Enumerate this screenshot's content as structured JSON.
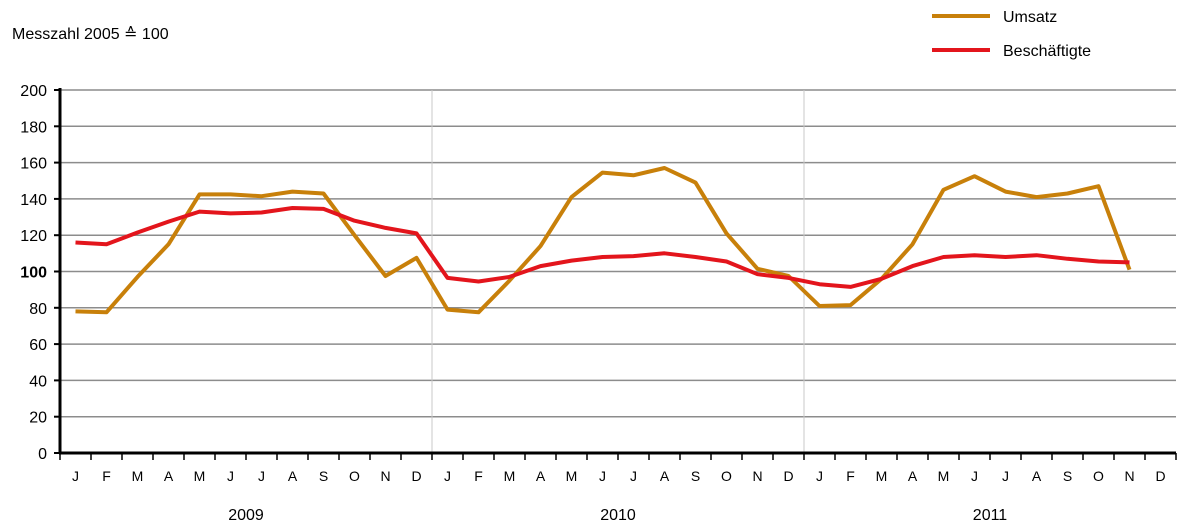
{
  "chart_data": {
    "type": "line",
    "unit_label": "Messzahl 2005 ≙ 100",
    "xlabel": "",
    "ylabel": "",
    "ylim": [
      0,
      200
    ],
    "y_ticks": [
      0,
      20,
      40,
      60,
      80,
      100,
      120,
      140,
      160,
      180,
      200
    ],
    "grid": true,
    "legend_position": "top-right",
    "month_labels": [
      "J",
      "F",
      "M",
      "A",
      "M",
      "J",
      "J",
      "A",
      "S",
      "O",
      "N",
      "D",
      "J",
      "F",
      "M",
      "A",
      "M",
      "J",
      "J",
      "A",
      "S",
      "O",
      "N",
      "D",
      "J",
      "F",
      "M",
      "A",
      "M",
      "J",
      "J",
      "A",
      "S",
      "O",
      "N",
      "D"
    ],
    "years": [
      "2009",
      "2010",
      "2011"
    ],
    "series": [
      {
        "name": "Umsatz",
        "color": "#c8800a",
        "values": [
          78,
          77.5,
          97,
          115,
          142.5,
          142.5,
          141.5,
          144,
          143,
          120,
          97.5,
          107.5,
          79,
          77.5,
          95,
          114,
          141,
          154.5,
          153,
          157,
          149,
          121,
          101.5,
          97.5,
          81,
          81.5,
          96,
          115,
          145,
          152.5,
          144,
          141,
          143,
          147,
          101
        ]
      },
      {
        "name": "Beschäftigte",
        "color": "#e3151c",
        "values": [
          116,
          115,
          121.5,
          127.5,
          133,
          132,
          132.5,
          135,
          134.5,
          128,
          124,
          121,
          96.5,
          94.5,
          97,
          103,
          106,
          108,
          108.5,
          110,
          108,
          105.5,
          98.5,
          96.5,
          93,
          91.5,
          96,
          103,
          108,
          109,
          108,
          109,
          107,
          105.5,
          105
        ]
      }
    ]
  }
}
